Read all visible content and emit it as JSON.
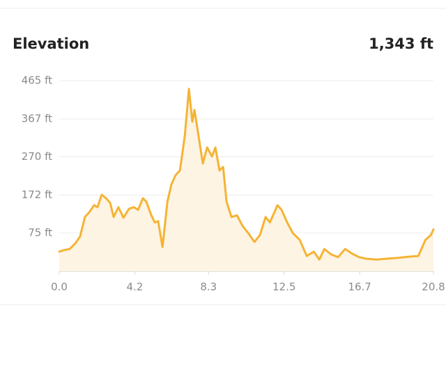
{
  "chart_data": {
    "type": "area",
    "title": "Elevation",
    "annotation": "1,343 ft",
    "x": [
      0,
      0.19,
      0.58,
      0.89,
      1.16,
      1.43,
      1.67,
      1.94,
      2.13,
      2.36,
      2.6,
      2.83,
      3.02,
      3.29,
      3.57,
      3.88,
      4.15,
      4.38,
      4.65,
      4.84,
      5.12,
      5.31,
      5.5,
      5.74,
      6.01,
      6.24,
      6.47,
      6.71,
      6.98,
      7.21,
      7.4,
      7.52,
      7.71,
      7.98,
      8.22,
      8.49,
      8.68,
      8.91,
      9.11,
      9.3,
      9.57,
      9.88,
      10.19,
      10.5,
      10.85,
      11.16,
      11.47,
      11.71,
      12.13,
      12.36,
      12.67,
      12.98,
      13.37,
      13.76,
      14.15,
      14.46,
      14.73,
      15.12,
      15.5,
      15.89,
      16.28,
      16.67,
      17.05,
      17.64,
      18.22,
      18.8,
      19.38,
      19.96,
      20.35,
      20.66,
      20.8
    ],
    "values": [
      27,
      30,
      34,
      48,
      66,
      116,
      128,
      146,
      141,
      173,
      164,
      152,
      116,
      141,
      114,
      137,
      141,
      134,
      164,
      155,
      120,
      102,
      105,
      39,
      155,
      200,
      223,
      235,
      324,
      444,
      360,
      390,
      333,
      253,
      294,
      271,
      294,
      235,
      244,
      155,
      116,
      120,
      93,
      75,
      52,
      70,
      116,
      102,
      146,
      134,
      102,
      75,
      57,
      16,
      27,
      7,
      34,
      20,
      13,
      34,
      22,
      13,
      9,
      7,
      9,
      11,
      14,
      16,
      57,
      70,
      84
    ],
    "color": "#f5b335",
    "fill_color": "#fdf4e3",
    "xlim": [
      0,
      20.8
    ],
    "ylim": [
      -23,
      465
    ],
    "xticks": [
      {
        "value": 0,
        "label": "0.0"
      },
      4.2,
      8.3,
      12.5,
      16.7,
      20.8
    ],
    "yticks": [
      {
        "value": 75,
        "label": "75 ft"
      },
      {
        "value": 172,
        "label": "172 ft"
      },
      {
        "value": 270,
        "label": "270 ft"
      },
      {
        "value": 367,
        "label": "367 ft"
      },
      {
        "value": 465,
        "label": "465 ft"
      }
    ],
    "grid": true
  }
}
